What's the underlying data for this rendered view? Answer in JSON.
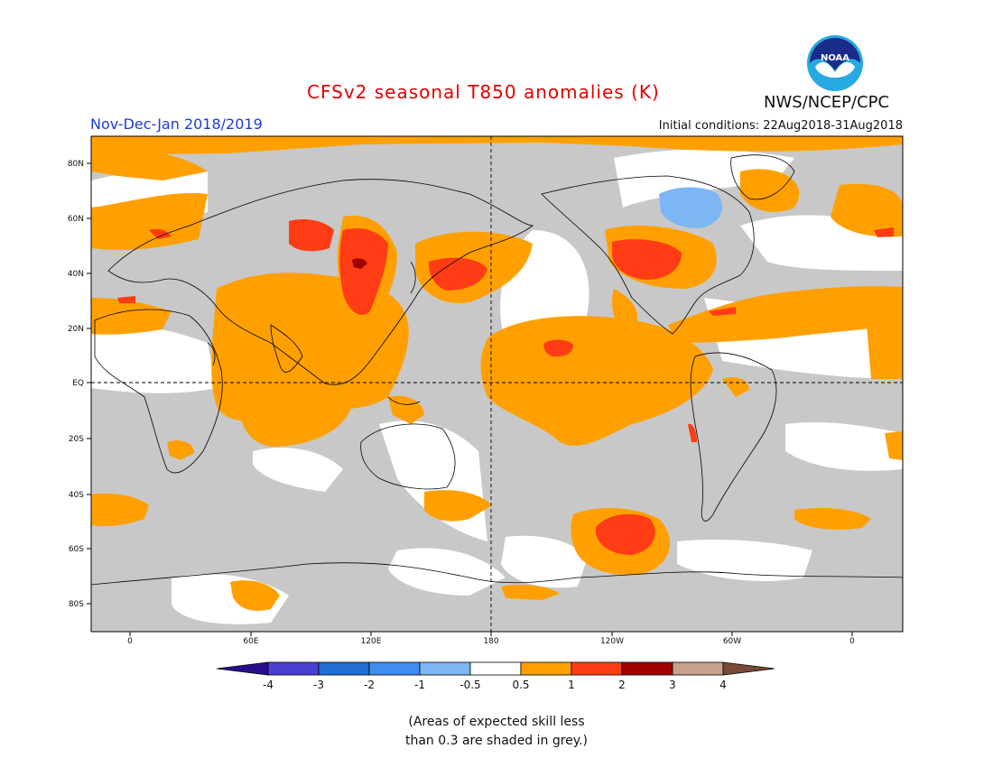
{
  "header": {
    "title": "CFSv2 seasonal T850 anomalies (K)",
    "season": "Nov-Dec-Jan 2018/2019",
    "initial_conditions": "Initial conditions: 22Aug2018-31Aug2018",
    "agency": "NWS/NCEP/CPC",
    "logo_text": "NOAA"
  },
  "map": {
    "lat_labels": [
      "80N",
      "60N",
      "40N",
      "20N",
      "EQ",
      "20S",
      "40S",
      "60S",
      "80S"
    ],
    "lon_labels": [
      "0",
      "60E",
      "120E",
      "180",
      "120W",
      "60W",
      "0"
    ],
    "reference_lines": [
      "EQ",
      "180"
    ]
  },
  "colorbar": {
    "ticks": [
      "-4",
      "-3",
      "-2",
      "-1",
      "-0.5",
      "0.5",
      "1",
      "2",
      "3",
      "4"
    ],
    "colors": [
      "#2a0d8e",
      "#4a3fd0",
      "#1f6fd4",
      "#3d8ef0",
      "#7cb6f4",
      "#ffffff",
      "#ffa000",
      "#ff3c14",
      "#a00000",
      "#c8a08c",
      "#7a4a36"
    ],
    "skill_mask_color": "#c8c8c8"
  },
  "footnote": {
    "line1": "(Areas of expected skill less",
    "line2": "than 0.3 are shaded in grey.)"
  }
}
